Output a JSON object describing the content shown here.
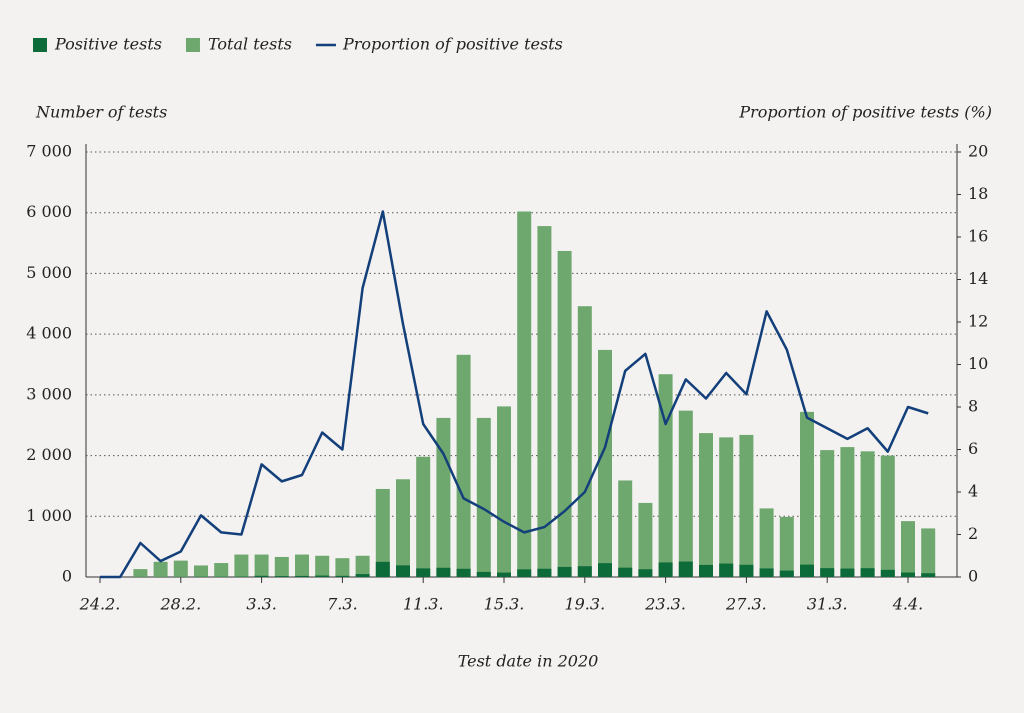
{
  "chart_data": {
    "type": "bar",
    "categories": [
      "24.2.",
      null,
      null,
      null,
      "28.2.",
      null,
      null,
      null,
      "3.3.",
      null,
      null,
      null,
      "7.3.",
      null,
      null,
      null,
      "11.3.",
      null,
      null,
      null,
      "15.3.",
      null,
      null,
      null,
      "19.3.",
      null,
      null,
      null,
      "23.3.",
      null,
      null,
      null,
      "27.3.",
      null,
      null,
      null,
      "31.3.",
      null,
      null,
      null,
      "4.4.",
      null
    ],
    "series": [
      {
        "name": "Positive tests",
        "color": "#0d6b3a",
        "values": [
          0,
          0,
          2,
          2,
          3,
          5,
          5,
          7,
          20,
          15,
          18,
          24,
          19,
          48,
          250,
          192,
          142,
          152,
          135,
          84,
          73,
          126,
          136,
          166,
          178,
          228,
          154,
          128,
          240,
          255,
          199,
          221,
          201,
          141,
          106,
          204,
          146,
          139,
          145,
          118,
          74,
          62
        ]
      },
      {
        "name": "Total tests",
        "color": "#6fa86f",
        "values": [
          0,
          0,
          130,
          250,
          270,
          190,
          230,
          370,
          370,
          330,
          370,
          350,
          310,
          350,
          1450,
          1610,
          1980,
          2620,
          3660,
          2620,
          2810,
          6020,
          5780,
          5370,
          4460,
          3740,
          1590,
          1220,
          3340,
          2740,
          2370,
          2300,
          2340,
          1130,
          990,
          2720,
          2090,
          2140,
          2070,
          2000,
          920,
          800
        ]
      },
      {
        "name": "Proportion of positive tests",
        "type": "line",
        "axis": "y2",
        "color": "#133f7a",
        "values": [
          0,
          0,
          1.6,
          0.75,
          1.2,
          2.9,
          2.1,
          2.0,
          5.3,
          4.5,
          4.8,
          6.8,
          6.0,
          13.6,
          17.2,
          11.9,
          7.2,
          5.8,
          3.7,
          3.2,
          2.6,
          2.1,
          2.35,
          3.1,
          4.0,
          6.1,
          9.7,
          10.5,
          7.2,
          9.3,
          8.4,
          9.6,
          8.6,
          12.5,
          10.7,
          7.5,
          7.0,
          6.5,
          7.0,
          5.9,
          8.0,
          7.7
        ]
      }
    ],
    "y_label": "Number of tests",
    "y2_label": "Proportion of positive tests (%)",
    "x_label": "Test date in 2020",
    "ylim": [
      0,
      7000
    ],
    "yticks": [
      0,
      {
        "value": 1000,
        "label": "1 000"
      },
      {
        "value": 2000,
        "label": "2 000"
      },
      {
        "value": 3000,
        "label": "3 000"
      },
      {
        "value": 4000,
        "label": "4 000"
      },
      {
        "value": 5000,
        "label": "5 000"
      },
      {
        "value": 6000,
        "label": "6 000"
      },
      {
        "value": 7000,
        "label": "7 000"
      }
    ],
    "y2lim": [
      0,
      20
    ],
    "y2ticks": [
      0,
      2,
      4,
      6,
      8,
      10,
      12,
      14,
      16,
      18,
      20
    ],
    "grid": true,
    "legend": "top"
  }
}
